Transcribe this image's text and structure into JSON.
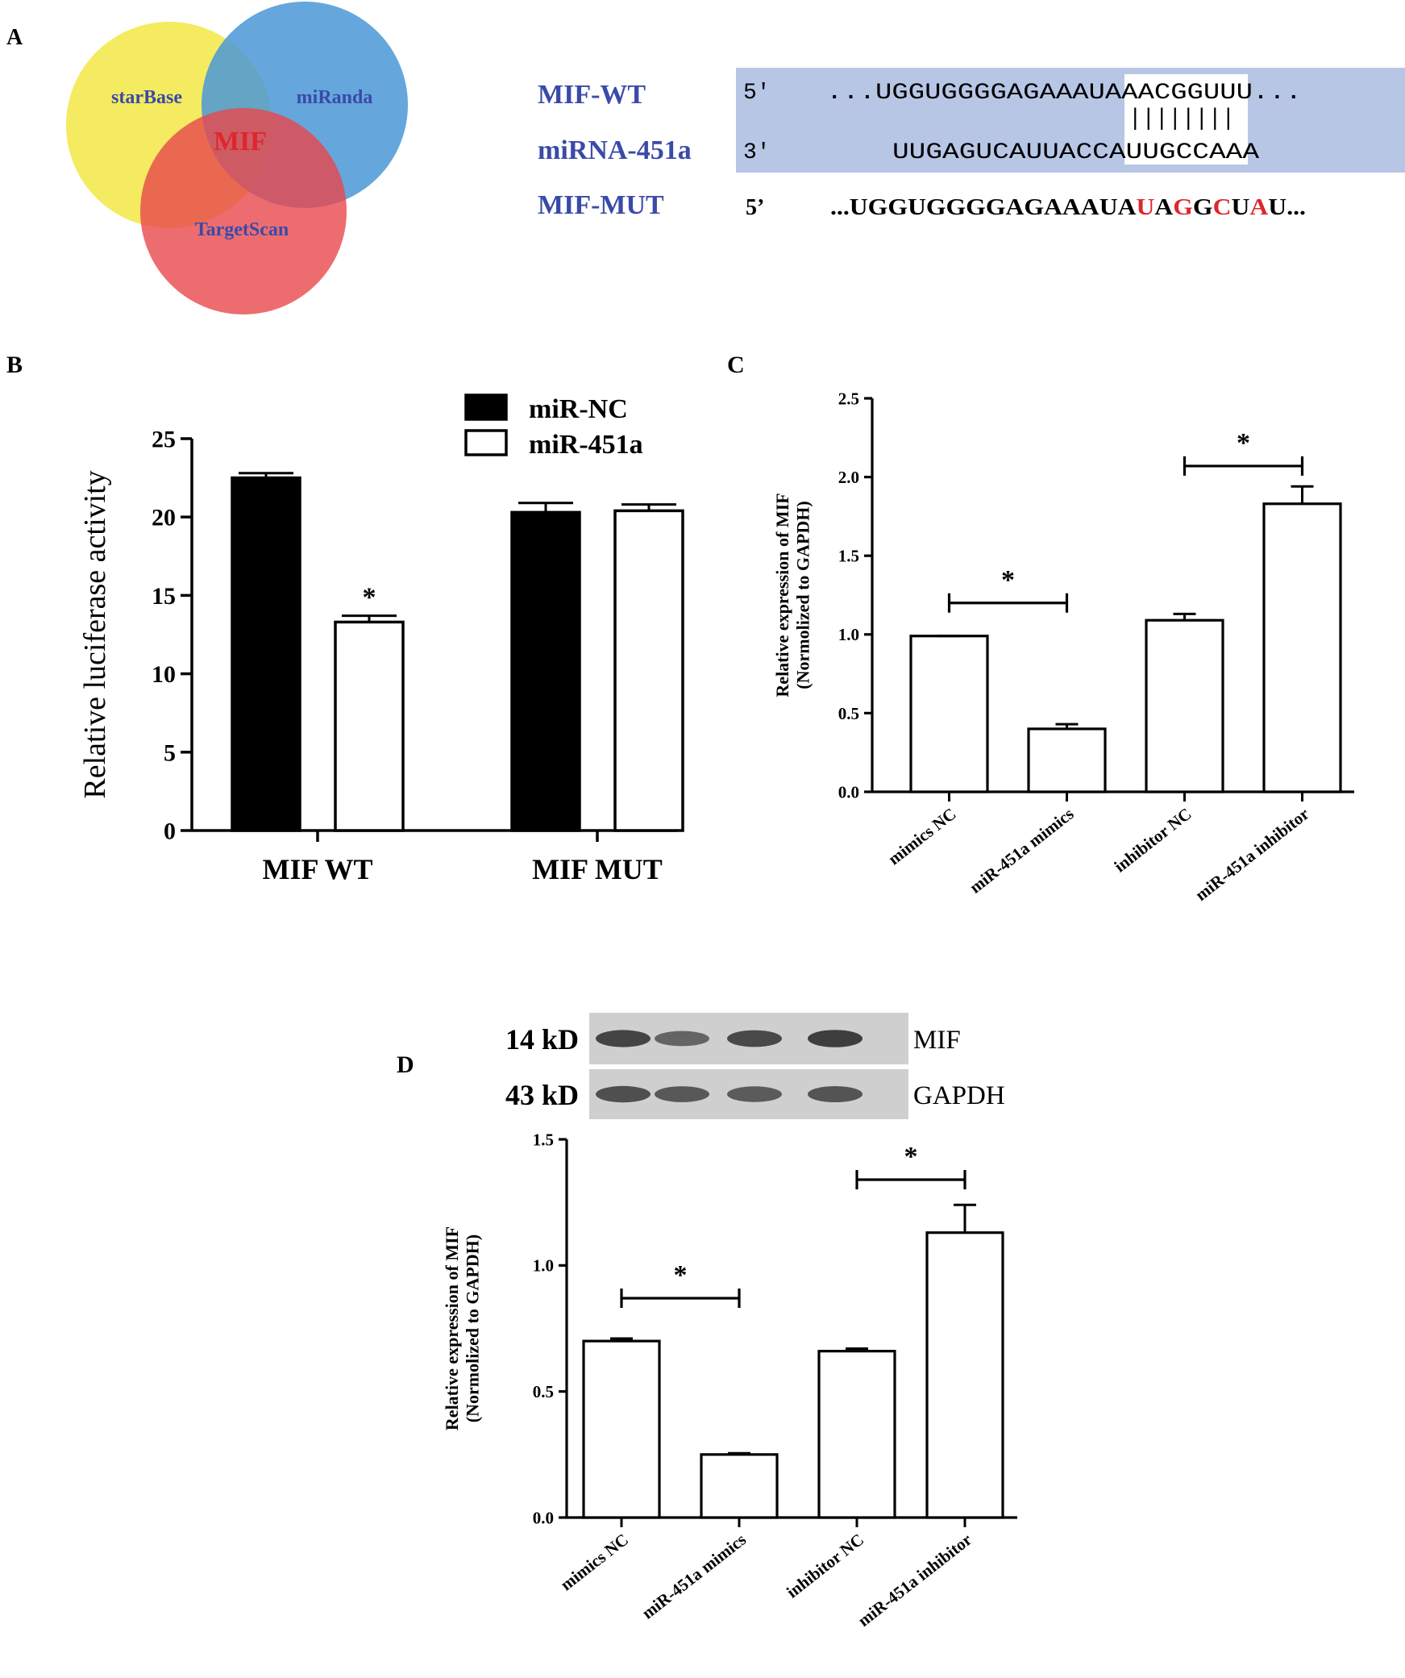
{
  "panel_labels": {
    "a": "A",
    "b": "B",
    "c": "C",
    "d": "D"
  },
  "colors": {
    "venn_starbase": "#f2e84a",
    "venn_miranda": "#4a98d6",
    "venn_targetscan": "#e8474c",
    "label_blue": "#3a4aa8",
    "mif_red": "#e0262d",
    "align_bg": "#b8c6e6",
    "mutation_red": "#e0262d",
    "bar_black": "#000000",
    "bar_white": "#ffffff"
  },
  "venn": {
    "sets": [
      "starBase",
      "miRanda",
      "TargetScan"
    ],
    "intersection": "MIF"
  },
  "alignment": {
    "row_labels": [
      "MIF-WT",
      "miRNA-451a",
      "MIF-MUT"
    ],
    "ends": [
      "5'",
      "3'",
      "5’"
    ],
    "wt": {
      "prefix": "...UGGUGGGGAGAAAUA",
      "site": "AACGGUUU",
      "suffix": "..."
    },
    "pairing": "||||||||",
    "mirna": {
      "prefix": "UUGAGUCAUUACCA",
      "site": "UUGCCAAA"
    },
    "mut": [
      {
        "t": "...UGGUGGGGAGAAAUA",
        "mut": false
      },
      {
        "t": "U",
        "mut": true
      },
      {
        "t": "A",
        "mut": false
      },
      {
        "t": "G",
        "mut": true
      },
      {
        "t": "G",
        "mut": false
      },
      {
        "t": "C",
        "mut": true
      },
      {
        "t": "U",
        "mut": false
      },
      {
        "t": "A",
        "mut": true
      },
      {
        "t": "U...",
        "mut": false
      }
    ]
  },
  "blot": {
    "bands": [
      {
        "label": "MIF",
        "size": "14 kD",
        "intensities": [
          0.9,
          0.6,
          0.85,
          0.95
        ]
      },
      {
        "label": "GAPDH",
        "size": "43 kD",
        "intensities": [
          0.8,
          0.72,
          0.68,
          0.75
        ]
      }
    ]
  },
  "chart_data": [
    {
      "id": "B",
      "type": "bar",
      "categories": [
        "MIF WT",
        "MIF MUT"
      ],
      "series": [
        {
          "name": "miR-NC",
          "values": [
            22.5,
            20.3
          ],
          "errors": [
            0.3,
            0.6
          ]
        },
        {
          "name": "miR-451a",
          "values": [
            13.3,
            20.4
          ],
          "errors": [
            0.4,
            0.4
          ]
        }
      ],
      "ylabel": "Relative luciferase activity",
      "ylim": [
        0,
        25
      ],
      "yticks": [
        0,
        5,
        10,
        15,
        20,
        25
      ],
      "legend_position": "top-right",
      "annotations": [
        {
          "category": 0,
          "series": 1,
          "text": "*"
        }
      ]
    },
    {
      "id": "C",
      "type": "bar",
      "categories": [
        "mimics NC",
        "miR-451a mimics",
        "inhibitor NC",
        "miR-451a inhibitor"
      ],
      "values": [
        0.99,
        0.4,
        1.09,
        1.83
      ],
      "errors": [
        0.0,
        0.03,
        0.04,
        0.11
      ],
      "ylabel": "Relative expression of MIF",
      "ylabel2": "(Normolized to GAPDH)",
      "ylim": [
        0,
        2.5
      ],
      "yticks": [
        "0.0",
        "0.5",
        "1.0",
        "1.5",
        "2.0",
        "2.5"
      ],
      "significance": [
        {
          "from": 0,
          "to": 1,
          "level": 1.2,
          "text": "*"
        },
        {
          "from": 2,
          "to": 3,
          "level": 2.07,
          "text": "*"
        }
      ]
    },
    {
      "id": "D",
      "type": "bar",
      "categories": [
        "mimics NC",
        "miR-451a mimics",
        "inhibitor NC",
        "miR-451a inhibitor"
      ],
      "values": [
        0.7,
        0.25,
        0.66,
        1.13
      ],
      "errors": [
        0.01,
        0.005,
        0.01,
        0.11
      ],
      "ylabel": "Relative expression of MIF",
      "ylabel2": "(Normolized to GAPDH)",
      "ylim": [
        0,
        1.5
      ],
      "yticks": [
        "0.0",
        "0.5",
        "1.0",
        "1.5"
      ],
      "significance": [
        {
          "from": 0,
          "to": 1,
          "level": 0.87,
          "text": "*"
        },
        {
          "from": 2,
          "to": 3,
          "level": 1.34,
          "text": "*"
        }
      ]
    }
  ]
}
